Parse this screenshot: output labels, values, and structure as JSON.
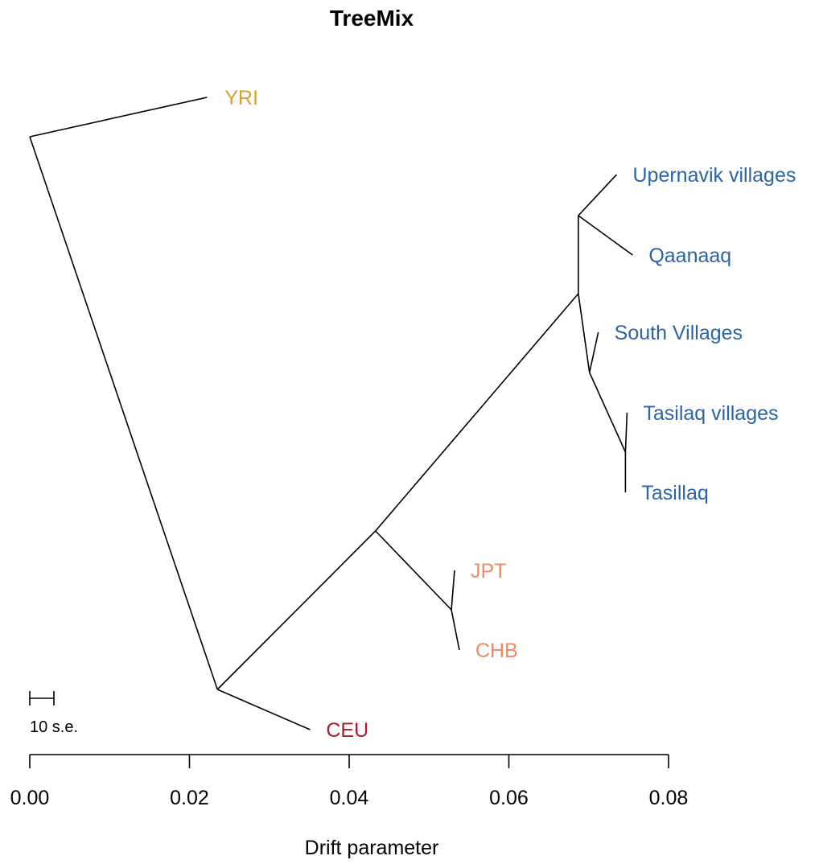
{
  "title": "TreeMix",
  "xlabel": "Drift parameter",
  "scale_bar_label": "10 s.e.",
  "x_range": [
    0,
    0.08
  ],
  "ticks": [
    "0.00",
    "0.02",
    "0.04",
    "0.06",
    "0.08"
  ],
  "tick_values": [
    0,
    0.02,
    0.04,
    0.06,
    0.08
  ],
  "colors": {
    "african": "#D4A22B",
    "european": "#B2182B",
    "east_asian": "#EF8A62",
    "greenland": "#2B65A8"
  },
  "chart_data": {
    "type": "tree",
    "title": "TreeMix",
    "xlabel": "Drift parameter",
    "xlim": [
      0,
      0.08
    ],
    "leaves": [
      {
        "id": "YRI",
        "label": "YRI",
        "drift": 0.0222,
        "group": "african"
      },
      {
        "id": "CEU",
        "label": "CEU",
        "drift": 0.0351,
        "group": "european"
      },
      {
        "id": "JPT",
        "label": "JPT",
        "drift": 0.0532,
        "group": "east_asian"
      },
      {
        "id": "CHB",
        "label": "CHB",
        "drift": 0.0538,
        "group": "east_asian"
      },
      {
        "id": "UPV",
        "label": "Upernavik villages",
        "drift": 0.0735,
        "group": "greenland"
      },
      {
        "id": "QAA",
        "label": "Qaanaaq",
        "drift": 0.0755,
        "group": "greenland"
      },
      {
        "id": "SOV",
        "label": "South Villages",
        "drift": 0.0712,
        "group": "greenland"
      },
      {
        "id": "TSV",
        "label": "Tasilaq villages",
        "drift": 0.0748,
        "group": "greenland"
      },
      {
        "id": "TSQ",
        "label": "Tasillaq",
        "drift": 0.0746,
        "group": "greenland"
      }
    ],
    "nodes": [
      {
        "id": "root",
        "drift": 0.0
      },
      {
        "id": "n1",
        "drift": 0.0235
      },
      {
        "id": "n2",
        "drift": 0.0433
      },
      {
        "id": "n3",
        "drift": 0.0528
      },
      {
        "id": "n4",
        "drift": 0.0687
      },
      {
        "id": "n5",
        "drift": 0.0687
      },
      {
        "id": "n6",
        "drift": 0.0701
      },
      {
        "id": "n7",
        "drift": 0.0746
      }
    ],
    "edges": [
      [
        "root",
        "YRI"
      ],
      [
        "root",
        "n1"
      ],
      [
        "n1",
        "CEU"
      ],
      [
        "n1",
        "n2"
      ],
      [
        "n2",
        "n3"
      ],
      [
        "n2",
        "n4"
      ],
      [
        "n3",
        "JPT"
      ],
      [
        "n3",
        "CHB"
      ],
      [
        "n4",
        "n5"
      ],
      [
        "n4",
        "n6"
      ],
      [
        "n5",
        "UPV"
      ],
      [
        "n5",
        "QAA"
      ],
      [
        "n6",
        "SOV"
      ],
      [
        "n6",
        "n7"
      ],
      [
        "n7",
        "TSV"
      ],
      [
        "n7",
        "TSQ"
      ]
    ]
  }
}
